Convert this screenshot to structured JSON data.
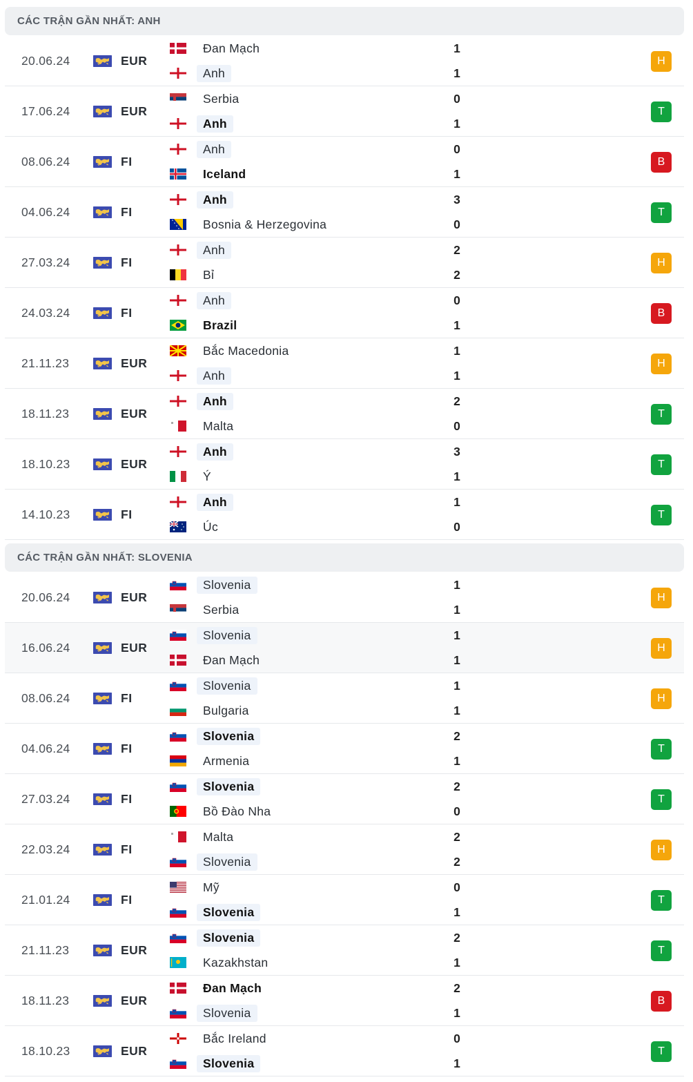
{
  "sections": [
    {
      "title": "CÁC TRẬN GẦN NHẤT: ANH",
      "matches": [
        {
          "date": "20.06.24",
          "comp": "EUR",
          "home": {
            "name": "Đan Mạch",
            "flag": "denmark",
            "win": false,
            "hl": false
          },
          "away": {
            "name": "Anh",
            "flag": "england",
            "win": false,
            "hl": true
          },
          "score_home": "1",
          "score_away": "1",
          "result": "H"
        },
        {
          "date": "17.06.24",
          "comp": "EUR",
          "home": {
            "name": "Serbia",
            "flag": "serbia",
            "win": false,
            "hl": false
          },
          "away": {
            "name": "Anh",
            "flag": "england",
            "win": true,
            "hl": true
          },
          "score_home": "0",
          "score_away": "1",
          "result": "T"
        },
        {
          "date": "08.06.24",
          "comp": "FI",
          "home": {
            "name": "Anh",
            "flag": "england",
            "win": false,
            "hl": true
          },
          "away": {
            "name": "Iceland",
            "flag": "iceland",
            "win": true,
            "hl": false
          },
          "score_home": "0",
          "score_away": "1",
          "result": "B"
        },
        {
          "date": "04.06.24",
          "comp": "FI",
          "home": {
            "name": "Anh",
            "flag": "england",
            "win": true,
            "hl": true
          },
          "away": {
            "name": "Bosnia & Herzegovina",
            "flag": "bosnia",
            "win": false,
            "hl": false
          },
          "score_home": "3",
          "score_away": "0",
          "result": "T"
        },
        {
          "date": "27.03.24",
          "comp": "FI",
          "home": {
            "name": "Anh",
            "flag": "england",
            "win": false,
            "hl": true
          },
          "away": {
            "name": "Bỉ",
            "flag": "belgium",
            "win": false,
            "hl": false
          },
          "score_home": "2",
          "score_away": "2",
          "result": "H"
        },
        {
          "date": "24.03.24",
          "comp": "FI",
          "home": {
            "name": "Anh",
            "flag": "england",
            "win": false,
            "hl": true
          },
          "away": {
            "name": "Brazil",
            "flag": "brazil",
            "win": true,
            "hl": false
          },
          "score_home": "0",
          "score_away": "1",
          "result": "B"
        },
        {
          "date": "21.11.23",
          "comp": "EUR",
          "home": {
            "name": "Bắc Macedonia",
            "flag": "macedonia",
            "win": false,
            "hl": false
          },
          "away": {
            "name": "Anh",
            "flag": "england",
            "win": false,
            "hl": true
          },
          "score_home": "1",
          "score_away": "1",
          "result": "H"
        },
        {
          "date": "18.11.23",
          "comp": "EUR",
          "home": {
            "name": "Anh",
            "flag": "england",
            "win": true,
            "hl": true
          },
          "away": {
            "name": "Malta",
            "flag": "malta",
            "win": false,
            "hl": false
          },
          "score_home": "2",
          "score_away": "0",
          "result": "T"
        },
        {
          "date": "18.10.23",
          "comp": "EUR",
          "home": {
            "name": "Anh",
            "flag": "england",
            "win": true,
            "hl": true
          },
          "away": {
            "name": "Ý",
            "flag": "italy",
            "win": false,
            "hl": false
          },
          "score_home": "3",
          "score_away": "1",
          "result": "T"
        },
        {
          "date": "14.10.23",
          "comp": "FI",
          "home": {
            "name": "Anh",
            "flag": "england",
            "win": true,
            "hl": true
          },
          "away": {
            "name": "Úc",
            "flag": "australia",
            "win": false,
            "hl": false
          },
          "score_home": "1",
          "score_away": "0",
          "result": "T"
        }
      ]
    },
    {
      "title": "CÁC TRẬN GẦN NHẤT: SLOVENIA",
      "matches": [
        {
          "date": "20.06.24",
          "comp": "EUR",
          "home": {
            "name": "Slovenia",
            "flag": "slovenia",
            "win": false,
            "hl": true
          },
          "away": {
            "name": "Serbia",
            "flag": "serbia",
            "win": false,
            "hl": false
          },
          "score_home": "1",
          "score_away": "1",
          "result": "H"
        },
        {
          "date": "16.06.24",
          "comp": "EUR",
          "home": {
            "name": "Slovenia",
            "flag": "slovenia",
            "win": false,
            "hl": true
          },
          "away": {
            "name": "Đan Mạch",
            "flag": "denmark",
            "win": false,
            "hl": false
          },
          "score_home": "1",
          "score_away": "1",
          "result": "H",
          "alt": true
        },
        {
          "date": "08.06.24",
          "comp": "FI",
          "home": {
            "name": "Slovenia",
            "flag": "slovenia",
            "win": false,
            "hl": true
          },
          "away": {
            "name": "Bulgaria",
            "flag": "bulgaria",
            "win": false,
            "hl": false
          },
          "score_home": "1",
          "score_away": "1",
          "result": "H"
        },
        {
          "date": "04.06.24",
          "comp": "FI",
          "home": {
            "name": "Slovenia",
            "flag": "slovenia",
            "win": true,
            "hl": true
          },
          "away": {
            "name": "Armenia",
            "flag": "armenia",
            "win": false,
            "hl": false
          },
          "score_home": "2",
          "score_away": "1",
          "result": "T"
        },
        {
          "date": "27.03.24",
          "comp": "FI",
          "home": {
            "name": "Slovenia",
            "flag": "slovenia",
            "win": true,
            "hl": true
          },
          "away": {
            "name": "Bồ Đào Nha",
            "flag": "portugal",
            "win": false,
            "hl": false
          },
          "score_home": "2",
          "score_away": "0",
          "result": "T"
        },
        {
          "date": "22.03.24",
          "comp": "FI",
          "home": {
            "name": "Malta",
            "flag": "malta",
            "win": false,
            "hl": false
          },
          "away": {
            "name": "Slovenia",
            "flag": "slovenia",
            "win": false,
            "hl": true
          },
          "score_home": "2",
          "score_away": "2",
          "result": "H"
        },
        {
          "date": "21.01.24",
          "comp": "FI",
          "home": {
            "name": "Mỹ",
            "flag": "usa",
            "win": false,
            "hl": false
          },
          "away": {
            "name": "Slovenia",
            "flag": "slovenia",
            "win": true,
            "hl": true
          },
          "score_home": "0",
          "score_away": "1",
          "result": "T"
        },
        {
          "date": "21.11.23",
          "comp": "EUR",
          "home": {
            "name": "Slovenia",
            "flag": "slovenia",
            "win": true,
            "hl": true
          },
          "away": {
            "name": "Kazakhstan",
            "flag": "kazakhstan",
            "win": false,
            "hl": false
          },
          "score_home": "2",
          "score_away": "1",
          "result": "T"
        },
        {
          "date": "18.11.23",
          "comp": "EUR",
          "home": {
            "name": "Đan Mạch",
            "flag": "denmark",
            "win": true,
            "hl": false
          },
          "away": {
            "name": "Slovenia",
            "flag": "slovenia",
            "win": false,
            "hl": true
          },
          "score_home": "2",
          "score_away": "1",
          "result": "B"
        },
        {
          "date": "18.10.23",
          "comp": "EUR",
          "home": {
            "name": "Bắc Ireland",
            "flag": "northern-ireland",
            "win": false,
            "hl": false
          },
          "away": {
            "name": "Slovenia",
            "flag": "slovenia",
            "win": true,
            "hl": true
          },
          "score_home": "0",
          "score_away": "1",
          "result": "T"
        }
      ]
    }
  ],
  "colors": {
    "draw": "#f5a60b",
    "win": "#11a33f",
    "loss": "#d71920"
  }
}
